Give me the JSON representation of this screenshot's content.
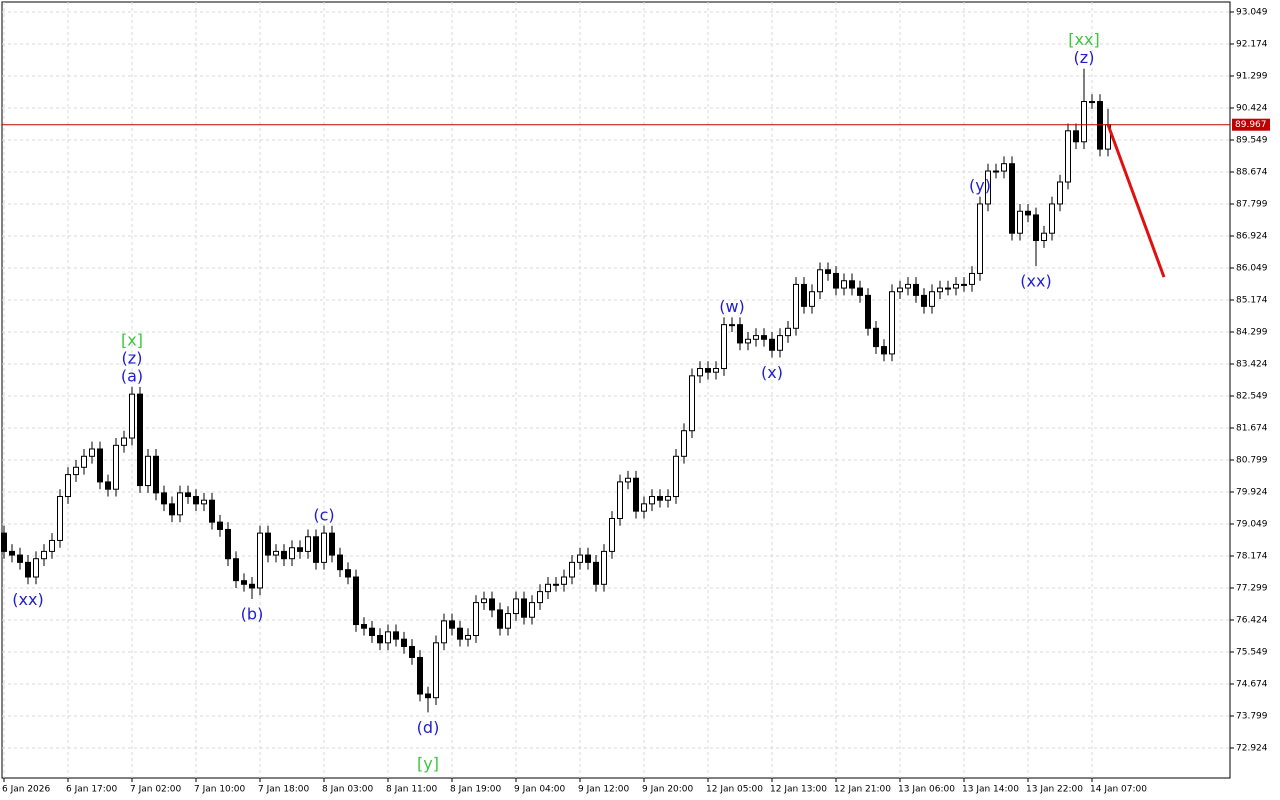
{
  "chart_data": {
    "type": "candlestick",
    "categories": [
      "6 Jan 2026",
      null,
      null,
      null,
      null,
      null,
      null,
      null,
      "6 Jan 17:00",
      null,
      null,
      null,
      null,
      null,
      null,
      null,
      "7 Jan 02:00",
      null,
      null,
      null,
      null,
      null,
      null,
      null,
      "7 Jan 10:00",
      null,
      null,
      null,
      null,
      null,
      null,
      null,
      "7 Jan 18:00",
      null,
      null,
      null,
      null,
      null,
      null,
      null,
      "8 Jan 03:00",
      null,
      null,
      null,
      null,
      null,
      null,
      null,
      "8 Jan 11:00",
      null,
      null,
      null,
      null,
      null,
      null,
      null,
      "8 Jan 19:00",
      null,
      null,
      null,
      null,
      null,
      null,
      null,
      "9 Jan 04:00",
      null,
      null,
      null,
      null,
      null,
      null,
      null,
      "9 Jan 12:00",
      null,
      null,
      null,
      null,
      null,
      null,
      null,
      "9 Jan 20:00",
      null,
      null,
      null,
      null,
      null,
      null,
      null,
      "12 Jan 05:00",
      null,
      null,
      null,
      null,
      null,
      null,
      null,
      "12 Jan 13:00",
      null,
      null,
      null,
      null,
      null,
      null,
      null,
      "12 Jan 21:00",
      null,
      null,
      null,
      null,
      null,
      null,
      null,
      "13 Jan 06:00",
      null,
      null,
      null,
      null,
      null,
      null,
      null,
      "13 Jan 14:00",
      null,
      null,
      null,
      null,
      null,
      null,
      null,
      "13 Jan 22:00",
      null,
      null,
      null,
      null,
      null,
      null,
      null,
      "14 Jan 07:00",
      null,
      null
    ],
    "open": [
      78.8,
      78.3,
      78.2,
      78.0,
      77.6,
      78.1,
      78.3,
      78.6,
      79.8,
      80.4,
      80.6,
      80.9,
      81.1,
      80.2,
      80.0,
      81.2,
      81.4,
      82.6,
      80.1,
      80.9,
      79.9,
      79.6,
      79.3,
      79.9,
      79.8,
      79.6,
      79.7,
      79.1,
      78.9,
      78.1,
      77.5,
      77.4,
      77.3,
      78.8,
      78.2,
      78.3,
      78.1,
      78.4,
      78.3,
      78.7,
      78.0,
      78.8,
      78.2,
      77.8,
      77.6,
      76.3,
      76.2,
      76.0,
      75.8,
      76.1,
      75.9,
      75.7,
      75.4,
      74.4,
      74.3,
      75.8,
      76.4,
      76.2,
      75.9,
      76.0,
      76.9,
      77.0,
      76.7,
      76.2,
      76.6,
      77.0,
      76.5,
      76.9,
      77.2,
      77.4,
      77.4,
      77.6,
      78.0,
      78.2,
      78.0,
      77.4,
      78.3,
      79.2,
      80.2,
      80.3,
      79.4,
      79.6,
      79.8,
      79.7,
      79.8,
      80.9,
      81.6,
      83.1,
      83.3,
      83.2,
      83.3,
      84.5,
      84.5,
      84.0,
      84.1,
      84.2,
      84.1,
      83.8,
      84.2,
      84.4,
      85.6,
      85.0,
      85.4,
      86.0,
      85.9,
      85.5,
      85.7,
      85.5,
      85.3,
      84.4,
      83.9,
      83.7,
      85.4,
      85.5,
      85.6,
      85.3,
      85.0,
      85.4,
      85.5,
      85.5,
      85.6,
      85.6,
      85.9,
      87.8,
      88.7,
      88.7,
      88.9,
      87.0,
      87.6,
      87.5,
      86.8,
      87.0,
      87.8,
      88.4,
      89.8,
      89.5,
      90.6,
      90.6,
      89.3
    ],
    "high": [
      79.0,
      78.5,
      78.4,
      78.2,
      78.3,
      78.5,
      78.8,
      80.0,
      80.6,
      80.8,
      81.1,
      81.3,
      81.3,
      80.4,
      81.4,
      81.6,
      82.8,
      82.8,
      81.1,
      81.1,
      80.1,
      79.8,
      80.1,
      80.1,
      80.0,
      79.9,
      79.9,
      79.3,
      79.1,
      78.3,
      77.7,
      77.6,
      79.0,
      79.0,
      78.5,
      78.5,
      78.6,
      78.6,
      78.9,
      78.9,
      79.0,
      79.0,
      78.4,
      78.0,
      77.8,
      76.5,
      76.4,
      76.2,
      76.3,
      76.3,
      76.1,
      75.9,
      75.6,
      74.6,
      76.0,
      76.6,
      76.6,
      76.4,
      76.2,
      77.1,
      77.2,
      77.2,
      76.9,
      76.8,
      77.2,
      77.2,
      77.1,
      77.4,
      77.6,
      77.6,
      77.8,
      78.2,
      78.4,
      78.4,
      78.2,
      78.5,
      79.4,
      80.4,
      80.5,
      80.5,
      79.8,
      80.0,
      80.0,
      80.0,
      81.1,
      81.8,
      83.3,
      83.5,
      83.5,
      83.5,
      84.7,
      84.7,
      84.7,
      84.3,
      84.4,
      84.4,
      84.3,
      84.4,
      84.6,
      85.8,
      85.8,
      85.6,
      86.2,
      86.2,
      86.1,
      85.9,
      85.9,
      85.7,
      85.5,
      84.6,
      84.1,
      85.6,
      85.7,
      85.8,
      85.8,
      85.5,
      85.6,
      85.7,
      85.7,
      85.8,
      85.8,
      86.1,
      88.0,
      88.9,
      88.9,
      89.1,
      89.1,
      87.8,
      87.8,
      87.7,
      87.2,
      88.0,
      88.6,
      90.0,
      90.0,
      91.5,
      90.8,
      90.8,
      90.4
    ],
    "low": [
      78.1,
      78.0,
      77.8,
      77.4,
      77.4,
      77.9,
      78.1,
      78.4,
      79.6,
      80.2,
      80.4,
      80.7,
      80.0,
      79.8,
      79.8,
      81.0,
      81.2,
      79.9,
      79.9,
      79.7,
      79.4,
      79.1,
      79.1,
      79.6,
      79.4,
      79.4,
      78.9,
      78.7,
      77.9,
      77.3,
      77.2,
      77.0,
      77.1,
      78.0,
      78.0,
      77.9,
      77.9,
      78.1,
      78.1,
      77.8,
      77.8,
      78.0,
      77.6,
      77.4,
      76.1,
      76.0,
      75.8,
      75.6,
      75.6,
      75.7,
      75.5,
      75.2,
      74.2,
      73.9,
      74.1,
      75.6,
      76.0,
      75.7,
      75.7,
      75.8,
      76.7,
      76.5,
      76.0,
      76.0,
      76.4,
      76.3,
      76.3,
      76.7,
      77.0,
      77.2,
      77.2,
      77.4,
      77.8,
      77.8,
      77.2,
      77.2,
      78.1,
      79.0,
      80.0,
      79.2,
      79.2,
      79.4,
      79.5,
      79.5,
      79.6,
      80.7,
      81.4,
      82.9,
      83.0,
      83.0,
      83.1,
      84.3,
      83.8,
      83.8,
      83.9,
      83.9,
      83.6,
      83.6,
      84.0,
      84.2,
      84.8,
      84.8,
      85.2,
      85.7,
      85.3,
      85.3,
      85.3,
      85.1,
      84.2,
      83.7,
      83.5,
      83.5,
      85.2,
      85.3,
      85.1,
      84.8,
      84.8,
      85.2,
      85.3,
      85.3,
      85.4,
      85.4,
      85.7,
      87.6,
      88.5,
      88.5,
      86.8,
      86.8,
      87.3,
      86.1,
      86.6,
      86.8,
      87.6,
      88.2,
      89.3,
      89.3,
      90.4,
      89.1,
      89.1
    ],
    "close": [
      78.3,
      78.2,
      78.0,
      77.6,
      78.1,
      78.3,
      78.6,
      79.8,
      80.4,
      80.6,
      80.9,
      81.1,
      80.2,
      80.0,
      81.2,
      81.4,
      82.6,
      80.1,
      80.9,
      79.9,
      79.6,
      79.3,
      79.9,
      79.8,
      79.6,
      79.7,
      79.1,
      78.9,
      78.1,
      77.5,
      77.4,
      77.3,
      78.8,
      78.2,
      78.3,
      78.1,
      78.4,
      78.3,
      78.7,
      78.0,
      78.8,
      78.2,
      77.8,
      77.6,
      76.3,
      76.2,
      76.0,
      75.8,
      76.1,
      75.9,
      75.7,
      75.4,
      74.4,
      74.3,
      75.8,
      76.4,
      76.2,
      75.9,
      76.0,
      76.9,
      77.0,
      76.7,
      76.2,
      76.6,
      77.0,
      76.5,
      76.9,
      77.2,
      77.4,
      77.4,
      77.6,
      78.0,
      78.2,
      78.0,
      77.4,
      78.3,
      79.2,
      80.2,
      80.3,
      79.4,
      79.6,
      79.8,
      79.7,
      79.8,
      80.9,
      81.6,
      83.1,
      83.3,
      83.2,
      83.3,
      84.5,
      84.5,
      84.0,
      84.1,
      84.2,
      84.1,
      83.8,
      84.2,
      84.4,
      85.6,
      85.0,
      85.4,
      86.0,
      85.9,
      85.5,
      85.7,
      85.5,
      85.3,
      84.4,
      83.9,
      83.7,
      85.4,
      85.5,
      85.6,
      85.3,
      85.0,
      85.4,
      85.5,
      85.5,
      85.6,
      85.6,
      85.9,
      87.8,
      88.7,
      88.7,
      88.9,
      87.0,
      87.6,
      87.5,
      86.8,
      87.0,
      87.8,
      88.4,
      89.8,
      89.5,
      90.6,
      90.6,
      89.3,
      89.967
    ],
    "up_color": "#ffffff",
    "down_color": "#000000",
    "wick_color": "#000000",
    "xlim": [
      -0.25,
      153.25
    ],
    "ylim": [
      72.104,
      93.322
    ],
    "yticks": [
      {
        "value": 93.049,
        "label": "93.049"
      },
      {
        "value": 92.174,
        "label": "92.174"
      },
      {
        "value": 91.299,
        "label": "91.299"
      },
      {
        "value": 90.424,
        "label": "90.424"
      },
      {
        "value": 89.549,
        "label": "89.549"
      },
      {
        "value": 88.674,
        "label": "88.674"
      },
      {
        "value": 87.799,
        "label": "87.799"
      },
      {
        "value": 86.924,
        "label": "86.924"
      },
      {
        "value": 86.049,
        "label": "86.049"
      },
      {
        "value": 85.174,
        "label": "85.174"
      },
      {
        "value": 84.299,
        "label": "84.299"
      },
      {
        "value": 83.424,
        "label": "83.424"
      },
      {
        "value": 82.549,
        "label": "82.549"
      },
      {
        "value": 81.674,
        "label": "81.674"
      },
      {
        "value": 80.799,
        "label": "80.799"
      },
      {
        "value": 79.924,
        "label": "79.924"
      },
      {
        "value": 79.049,
        "label": "79.049"
      },
      {
        "value": 78.174,
        "label": "78.174"
      },
      {
        "value": 77.299,
        "label": "77.299"
      },
      {
        "value": 76.424,
        "label": "76.424"
      },
      {
        "value": 75.549,
        "label": "75.549"
      },
      {
        "value": 74.674,
        "label": "74.674"
      },
      {
        "value": 73.799,
        "label": "73.799"
      },
      {
        "value": 72.924,
        "label": "72.924"
      }
    ],
    "grid": true,
    "last_price": {
      "value": 89.967,
      "label": "89.967",
      "color": "#c00000"
    },
    "forecast": {
      "from": [
        138,
        89.967
      ],
      "to": [
        145,
        85.8
      ],
      "color": "#e01010"
    },
    "annotations": [
      {
        "label": "(xx)",
        "category": 3,
        "position": "below",
        "color": "#2020d0"
      },
      {
        "label": "(a)",
        "category": 16,
        "position": "above",
        "color": "#2020d0"
      },
      {
        "label": "(z)",
        "category": 16,
        "position": "above",
        "color": "#2020d0"
      },
      {
        "label": "[x]",
        "category": 16,
        "position": "above",
        "color": "#3cc83c"
      },
      {
        "label": "(b)",
        "category": 31,
        "position": "below",
        "color": "#2020d0"
      },
      {
        "label": "(c)",
        "category": 40,
        "position": "above",
        "color": "#2020d0"
      },
      {
        "label": "(d)",
        "category": 53,
        "position": "below",
        "color": "#2020d0"
      },
      {
        "label": "[y]",
        "category": 53,
        "position": "below",
        "color": "#3cc83c"
      },
      {
        "label": "(w)",
        "category": 91,
        "position": "above",
        "color": "#2020d0"
      },
      {
        "label": "(x)",
        "category": 96,
        "position": "below",
        "color": "#2020d0"
      },
      {
        "label": "(y)",
        "category": 122,
        "position": "above",
        "color": "#2020d0"
      },
      {
        "label": "(xx)",
        "category": 129,
        "position": "below",
        "color": "#2020d0"
      },
      {
        "label": "(z)",
        "category": 135,
        "position": "above",
        "color": "#2020d0"
      },
      {
        "label": "[xx]",
        "category": 135,
        "position": "above",
        "color": "#3cc83c"
      }
    ]
  }
}
